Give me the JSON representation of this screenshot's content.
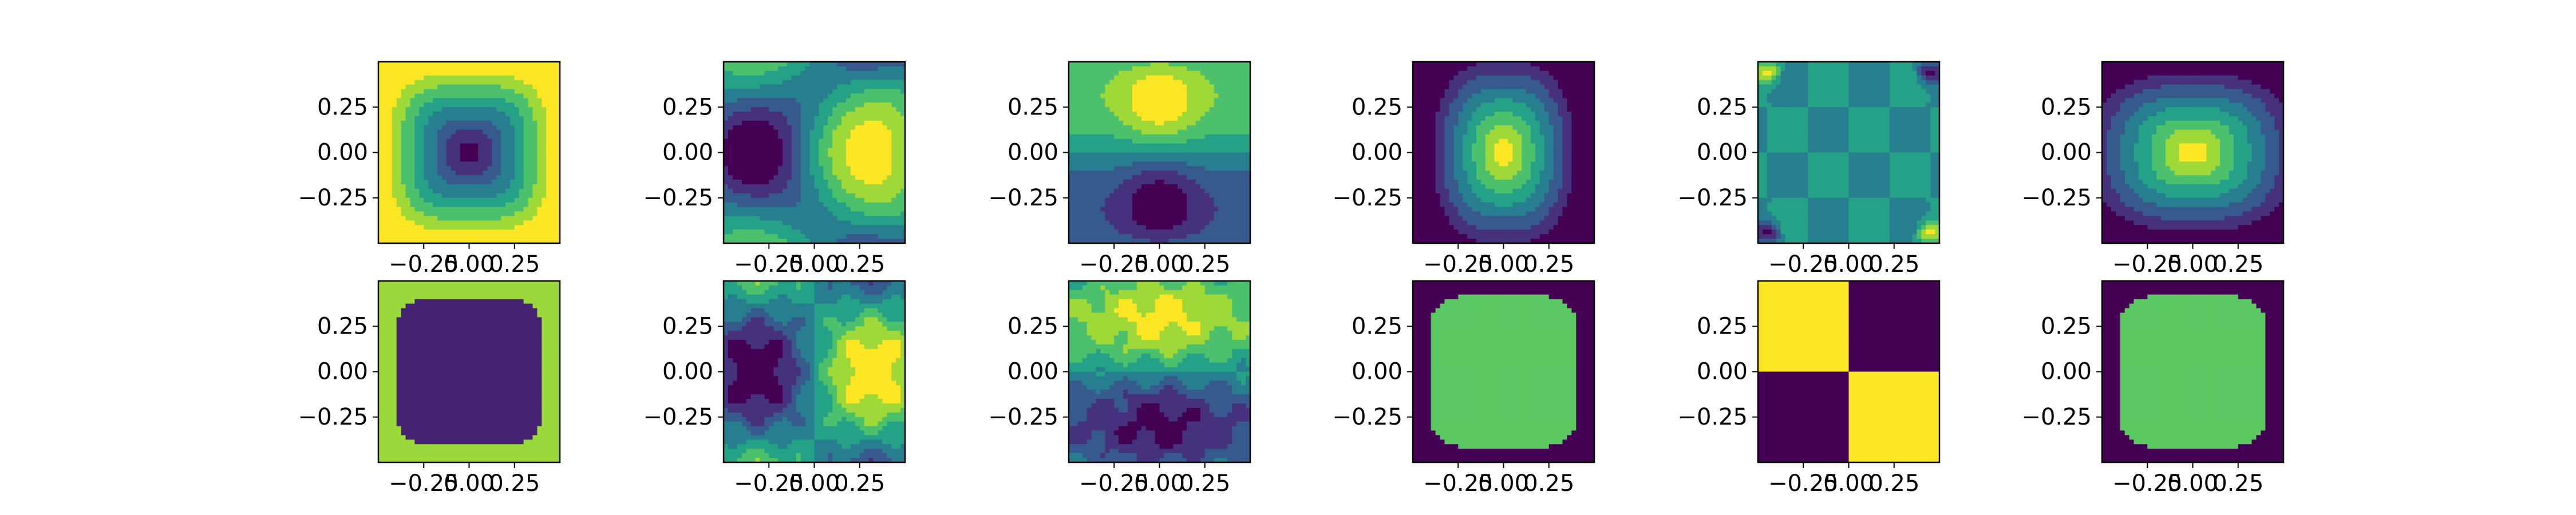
{
  "chart_data": {
    "type": "contour",
    "grid": {
      "rows": 2,
      "cols": 6
    },
    "colormap": "viridis",
    "colormap_stops": [
      "#440154",
      "#472c7a",
      "#3b518b",
      "#2c718e",
      "#21908d",
      "#27ad81",
      "#5cc863",
      "#aadc32",
      "#fde725"
    ],
    "xlim": [
      -0.5,
      0.5
    ],
    "ylim": [
      -0.5,
      0.5
    ],
    "x_ticks": [
      -0.25,
      0.0,
      0.25
    ],
    "x_tick_labels": [
      "−0.25",
      "0.00",
      "0.25"
    ],
    "y_ticks": [
      0.25,
      0.0,
      -0.25
    ],
    "y_tick_labels": [
      "0.25",
      "0.00",
      "−0.25"
    ],
    "panels": [
      {
        "row": 0,
        "col": 0,
        "pattern": "center-minimum",
        "levels": 8
      },
      {
        "row": 0,
        "col": 1,
        "pattern": "left-low-right-high",
        "levels": 8
      },
      {
        "row": 0,
        "col": 2,
        "pattern": "top-high-bottom-low",
        "levels": 8
      },
      {
        "row": 0,
        "col": 3,
        "pattern": "center-maximum",
        "levels": 8
      },
      {
        "row": 0,
        "col": 4,
        "pattern": "corner-checker-high-frequency",
        "levels": 8
      },
      {
        "row": 0,
        "col": 5,
        "pattern": "center-maximum-wide",
        "levels": 8
      },
      {
        "row": 1,
        "col": 0,
        "pattern": "center-minimum-binary",
        "levels": 3
      },
      {
        "row": 1,
        "col": 1,
        "pattern": "left-low-right-high-noisy",
        "levels": 8
      },
      {
        "row": 1,
        "col": 2,
        "pattern": "top-high-bottom-low-noisy",
        "levels": 8
      },
      {
        "row": 1,
        "col": 3,
        "pattern": "center-maximum-binary",
        "levels": 2
      },
      {
        "row": 1,
        "col": 4,
        "pattern": "quadrant-checker-binary",
        "levels": 2
      },
      {
        "row": 1,
        "col": 5,
        "pattern": "center-maximum-binary",
        "levels": 2
      }
    ]
  }
}
